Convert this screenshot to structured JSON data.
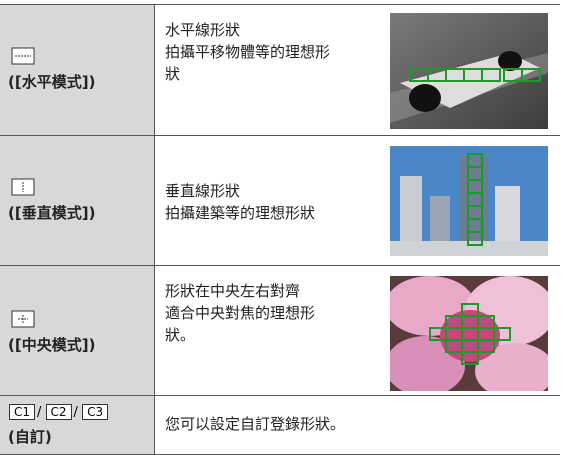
{
  "table": {
    "rows": [
      {
        "mode": "([水平模式])",
        "desc": [
          "水平線形狀",
          "拍攝平移物體等的理想形",
          "狀"
        ]
      },
      {
        "mode": "([垂直模式])",
        "desc": [
          "垂直線形狀",
          "拍攝建築等的理想形狀"
        ]
      },
      {
        "mode": "([中央模式])",
        "desc": [
          "形狀在中央左右對齊",
          "適合中央對焦的理想形",
          "狀。"
        ]
      },
      {
        "icons": [
          "C1",
          "C2",
          "C3"
        ],
        "mode": "(自訂)",
        "desc": [
          "您可以設定自訂登錄形狀。"
        ]
      }
    ]
  }
}
